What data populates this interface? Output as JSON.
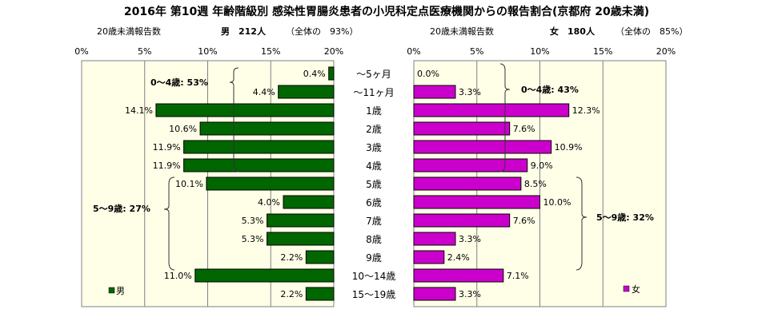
{
  "chart_data": {
    "type": "bar",
    "title": "2016年 第10週 年齢階級別 感染性胃腸炎患者の小児科定点医療機関からの報告割合(京都府 20歳未満)",
    "categories": [
      "～5ヶ月",
      "～11ヶ月",
      "1歳",
      "2歳",
      "3歳",
      "4歳",
      "5歳",
      "6歳",
      "7歳",
      "8歳",
      "9歳",
      "10～14歳",
      "15～19歳"
    ],
    "xlim": [
      0,
      20
    ],
    "ticks": [
      "20%",
      "15%",
      "10%",
      "5%",
      "0%"
    ],
    "ticks_right": [
      "0%",
      "5%",
      "10%",
      "15%",
      "20%"
    ],
    "series": [
      {
        "name": "男",
        "legend": "男",
        "header_left": "20歳未満報告数",
        "header_count": "男　212人",
        "header_ratio": "（全体の　93%）",
        "color": "#006600",
        "values": [
          0.4,
          4.4,
          14.1,
          10.6,
          11.9,
          11.9,
          10.1,
          4.0,
          5.3,
          5.3,
          2.2,
          11.0,
          2.2
        ],
        "labels": [
          "0.4%",
          "4.4%",
          "14.1%",
          "10.6%",
          "11.9%",
          "11.9%",
          "10.1%",
          "4.0%",
          "5.3%",
          "5.3%",
          "2.2%",
          "11.0%",
          "2.2%"
        ],
        "group_labels": [
          "0～4歳: 53%",
          "5～9歳: 27%"
        ]
      },
      {
        "name": "女",
        "legend": "女",
        "header_left": "20歳未満報告数",
        "header_count": "女　180人",
        "header_ratio": "（全体の　85%）",
        "color": "#CC00CC",
        "values": [
          0.0,
          3.3,
          12.3,
          7.6,
          10.9,
          9.0,
          8.5,
          10.0,
          7.6,
          3.3,
          2.4,
          7.1,
          3.3
        ],
        "labels": [
          "0.0%",
          "3.3%",
          "12.3%",
          "7.6%",
          "10.9%",
          "9.0%",
          "8.5%",
          "10.0%",
          "7.6%",
          "3.3%",
          "2.4%",
          "7.1%",
          "3.3%"
        ],
        "group_labels": [
          "0～4歳: 43%",
          "5～9歳: 32%"
        ]
      }
    ],
    "grid": true,
    "plot_background": "#FFFFE8"
  }
}
